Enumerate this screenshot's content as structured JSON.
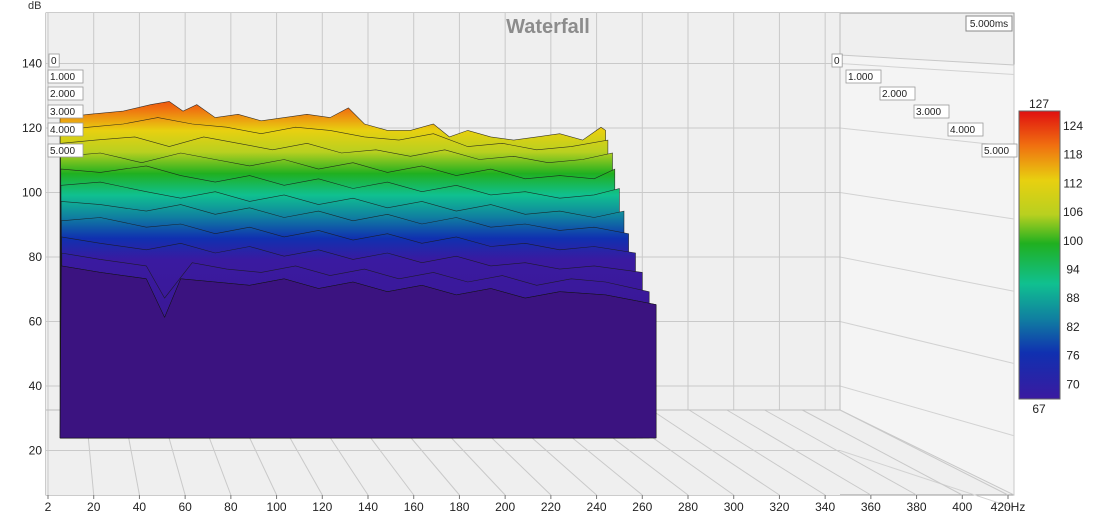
{
  "chart_data": {
    "type": "area",
    "title": "Waterfall",
    "y_unit": "dB",
    "x_unit": "Hz",
    "time_unit_label": "5.000ms",
    "x_ticks": [
      "2",
      "20",
      "40",
      "60",
      "80",
      "100",
      "120",
      "140",
      "160",
      "180",
      "200",
      "220",
      "240",
      "260",
      "280",
      "300",
      "320",
      "340",
      "360",
      "380",
      "400",
      "420Hz"
    ],
    "y_ticks": [
      "20",
      "40",
      "60",
      "80",
      "100",
      "120",
      "140"
    ],
    "time_ticks_left": [
      "0",
      "1.000",
      "2.000",
      "3.000",
      "4.000",
      "5.000"
    ],
    "time_ticks_right": [
      "0",
      "1.000",
      "2.000",
      "3.000",
      "4.000",
      "5.000"
    ],
    "xlim": [
      2,
      420
    ],
    "ylim": [
      10,
      150
    ],
    "colorbar": {
      "top_label": "127",
      "bottom_label": "67",
      "ticks": [
        "124",
        "118",
        "112",
        "106",
        "100",
        "94",
        "88",
        "82",
        "76",
        "70"
      ],
      "stops": [
        "#e01010",
        "#f07010",
        "#e8d010",
        "#b8d020",
        "#20b020",
        "#10c090",
        "#1080a0",
        "#1030b0",
        "#3a1aa0",
        "#401480"
      ]
    },
    "series": [
      {
        "time": 0.0,
        "freq_end": 240,
        "values": [
          [
            3,
            122
          ],
          [
            15,
            123
          ],
          [
            30,
            124
          ],
          [
            42,
            126
          ],
          [
            50,
            127
          ],
          [
            56,
            124
          ],
          [
            62,
            126
          ],
          [
            70,
            122
          ],
          [
            80,
            123
          ],
          [
            90,
            121
          ],
          [
            100,
            122
          ],
          [
            110,
            123
          ],
          [
            120,
            122
          ],
          [
            128,
            125
          ],
          [
            135,
            120
          ],
          [
            145,
            118
          ],
          [
            155,
            118
          ],
          [
            165,
            120
          ],
          [
            172,
            116
          ],
          [
            180,
            118
          ],
          [
            190,
            116
          ],
          [
            200,
            115
          ],
          [
            210,
            116
          ],
          [
            220,
            117
          ],
          [
            230,
            115
          ],
          [
            238,
            119
          ],
          [
            240,
            118
          ]
        ]
      },
      {
        "time": 0.5,
        "freq_end": 241,
        "values": [
          [
            3,
            118
          ],
          [
            15,
            119
          ],
          [
            30,
            120
          ],
          [
            45,
            122
          ],
          [
            60,
            120
          ],
          [
            75,
            119
          ],
          [
            90,
            117
          ],
          [
            105,
            119
          ],
          [
            120,
            118
          ],
          [
            135,
            116
          ],
          [
            150,
            115
          ],
          [
            165,
            117
          ],
          [
            180,
            113
          ],
          [
            195,
            114
          ],
          [
            210,
            112
          ],
          [
            225,
            113
          ],
          [
            241,
            115
          ]
        ]
      },
      {
        "time": 1.0,
        "freq_end": 243,
        "values": [
          [
            3,
            114
          ],
          [
            18,
            115
          ],
          [
            35,
            116
          ],
          [
            50,
            113
          ],
          [
            65,
            116
          ],
          [
            80,
            114
          ],
          [
            95,
            112
          ],
          [
            110,
            114
          ],
          [
            125,
            111
          ],
          [
            140,
            112
          ],
          [
            155,
            110
          ],
          [
            170,
            112
          ],
          [
            185,
            109
          ],
          [
            200,
            110
          ],
          [
            215,
            108
          ],
          [
            230,
            109
          ],
          [
            243,
            111
          ]
        ]
      },
      {
        "time": 1.5,
        "freq_end": 244,
        "values": [
          [
            3,
            110
          ],
          [
            20,
            111
          ],
          [
            38,
            108
          ],
          [
            55,
            111
          ],
          [
            70,
            109
          ],
          [
            85,
            107
          ],
          [
            100,
            109
          ],
          [
            115,
            106
          ],
          [
            130,
            108
          ],
          [
            145,
            105
          ],
          [
            160,
            107
          ],
          [
            175,
            104
          ],
          [
            190,
            106
          ],
          [
            205,
            103
          ],
          [
            220,
            104
          ],
          [
            235,
            103
          ],
          [
            244,
            106
          ]
        ]
      },
      {
        "time": 2.0,
        "freq_end": 246,
        "values": [
          [
            3,
            106
          ],
          [
            20,
            105
          ],
          [
            40,
            107
          ],
          [
            55,
            104
          ],
          [
            70,
            102
          ],
          [
            85,
            104
          ],
          [
            100,
            101
          ],
          [
            115,
            103
          ],
          [
            130,
            100
          ],
          [
            145,
            102
          ],
          [
            160,
            99
          ],
          [
            175,
            101
          ],
          [
            190,
            98
          ],
          [
            205,
            99
          ],
          [
            220,
            97
          ],
          [
            235,
            98
          ],
          [
            246,
            100
          ]
        ]
      },
      {
        "time": 2.5,
        "freq_end": 248,
        "values": [
          [
            3,
            101
          ],
          [
            20,
            102
          ],
          [
            40,
            99
          ],
          [
            55,
            97
          ],
          [
            70,
            99
          ],
          [
            85,
            96
          ],
          [
            100,
            98
          ],
          [
            115,
            95
          ],
          [
            130,
            97
          ],
          [
            145,
            94
          ],
          [
            160,
            96
          ],
          [
            175,
            93
          ],
          [
            190,
            95
          ],
          [
            205,
            92
          ],
          [
            220,
            93
          ],
          [
            235,
            91
          ],
          [
            248,
            93
          ]
        ]
      },
      {
        "time": 3.0,
        "freq_end": 250,
        "values": [
          [
            3,
            96
          ],
          [
            20,
            95
          ],
          [
            40,
            93
          ],
          [
            55,
            95
          ],
          [
            70,
            92
          ],
          [
            85,
            94
          ],
          [
            100,
            91
          ],
          [
            115,
            93
          ],
          [
            130,
            90
          ],
          [
            145,
            92
          ],
          [
            160,
            89
          ],
          [
            175,
            91
          ],
          [
            190,
            88
          ],
          [
            205,
            89
          ],
          [
            220,
            87
          ],
          [
            235,
            88
          ],
          [
            250,
            86
          ]
        ]
      },
      {
        "time": 3.5,
        "freq_end": 253,
        "values": [
          [
            3,
            90
          ],
          [
            20,
            91
          ],
          [
            40,
            88
          ],
          [
            55,
            89
          ],
          [
            70,
            86
          ],
          [
            85,
            88
          ],
          [
            100,
            85
          ],
          [
            115,
            87
          ],
          [
            130,
            84
          ],
          [
            145,
            86
          ],
          [
            160,
            83
          ],
          [
            175,
            85
          ],
          [
            190,
            82
          ],
          [
            205,
            83
          ],
          [
            220,
            81
          ],
          [
            235,
            82
          ],
          [
            253,
            80
          ]
        ]
      },
      {
        "time": 4.0,
        "freq_end": 256,
        "values": [
          [
            3,
            85
          ],
          [
            20,
            83
          ],
          [
            40,
            81
          ],
          [
            55,
            83
          ],
          [
            70,
            80
          ],
          [
            85,
            82
          ],
          [
            100,
            79
          ],
          [
            115,
            81
          ],
          [
            130,
            78
          ],
          [
            145,
            80
          ],
          [
            160,
            77
          ],
          [
            175,
            79
          ],
          [
            190,
            76
          ],
          [
            205,
            77
          ],
          [
            220,
            75
          ],
          [
            235,
            76
          ],
          [
            256,
            74
          ]
        ]
      },
      {
        "time": 4.5,
        "freq_end": 259,
        "values": [
          [
            3,
            80
          ],
          [
            20,
            78
          ],
          [
            40,
            76
          ],
          [
            48,
            66
          ],
          [
            60,
            77
          ],
          [
            75,
            75
          ],
          [
            90,
            74
          ],
          [
            105,
            76
          ],
          [
            120,
            73
          ],
          [
            135,
            75
          ],
          [
            150,
            72
          ],
          [
            165,
            74
          ],
          [
            180,
            71
          ],
          [
            195,
            73
          ],
          [
            210,
            70
          ],
          [
            225,
            72
          ],
          [
            240,
            71
          ],
          [
            259,
            68
          ]
        ]
      },
      {
        "time": 5.0,
        "freq_end": 262,
        "values": [
          [
            3,
            76
          ],
          [
            20,
            74
          ],
          [
            40,
            72
          ],
          [
            48,
            60
          ],
          [
            55,
            72
          ],
          [
            70,
            71
          ],
          [
            85,
            70
          ],
          [
            100,
            72
          ],
          [
            115,
            69
          ],
          [
            130,
            71
          ],
          [
            145,
            68
          ],
          [
            160,
            70
          ],
          [
            175,
            67
          ],
          [
            190,
            69
          ],
          [
            205,
            66
          ],
          [
            220,
            68
          ],
          [
            240,
            67
          ],
          [
            262,
            64
          ]
        ]
      }
    ]
  }
}
